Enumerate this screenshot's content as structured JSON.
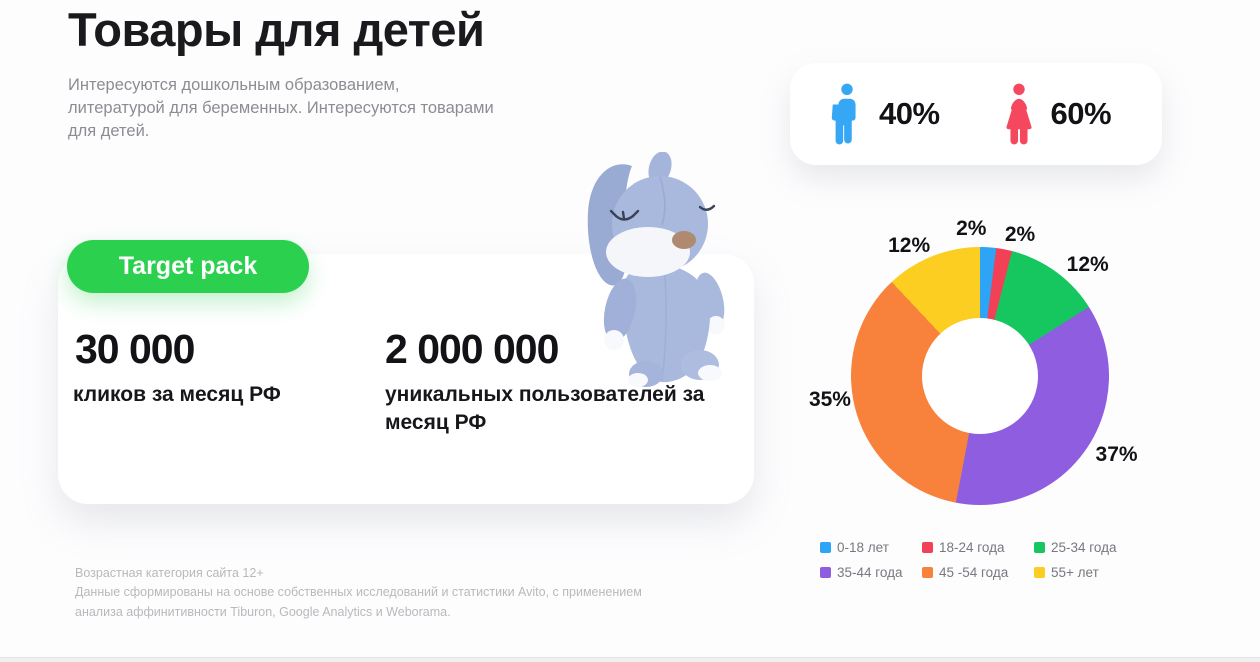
{
  "page": {
    "title": "Товары для детей",
    "description": "Интересуются дошкольным образованием, литературой для беременных. Интересуются товарами для детей."
  },
  "gender_card": {
    "male": {
      "icon": "male-icon",
      "value": "40%",
      "color": "#35a7f5"
    },
    "female": {
      "icon": "female-icon",
      "value": "60%",
      "color": "#f5485f"
    }
  },
  "offer_card": {
    "badge": "Target pack",
    "badge_color": "#2bd14e",
    "stats": [
      {
        "value": "30 000",
        "label": "кликов за месяц РФ"
      },
      {
        "value": "2 000 000",
        "label": "уникальных пользователей за месяц РФ"
      }
    ]
  },
  "chart_data": {
    "type": "pie",
    "donut": true,
    "start_angle_deg": 0,
    "direction": "clockwise",
    "legend_position": "bottom",
    "segments": [
      {
        "label": "0-18 лет",
        "value": 2,
        "display": "2%",
        "color": "#2da4f5"
      },
      {
        "label": "18-24 года",
        "value": 2,
        "display": "2%",
        "color": "#f24157"
      },
      {
        "label": "25-34 года",
        "value": 12,
        "display": "12%",
        "color": "#16c75f"
      },
      {
        "label": "35-44 года",
        "value": 37,
        "display": "37%",
        "color": "#8f5de0"
      },
      {
        "label": "45 -54 года",
        "value": 35,
        "display": "35%",
        "color": "#f8823c"
      },
      {
        "label": "55+ лет",
        "value": 12,
        "display": "12%",
        "color": "#fcce21"
      }
    ]
  },
  "footer": {
    "line1": "Возрастная категория сайта 12+",
    "line2": "Данные сформированы на основе собственных исследований и статистики Avito, с применением",
    "line3": "анализа аффинитивности Tiburon, Google Analytics и Weborama."
  }
}
